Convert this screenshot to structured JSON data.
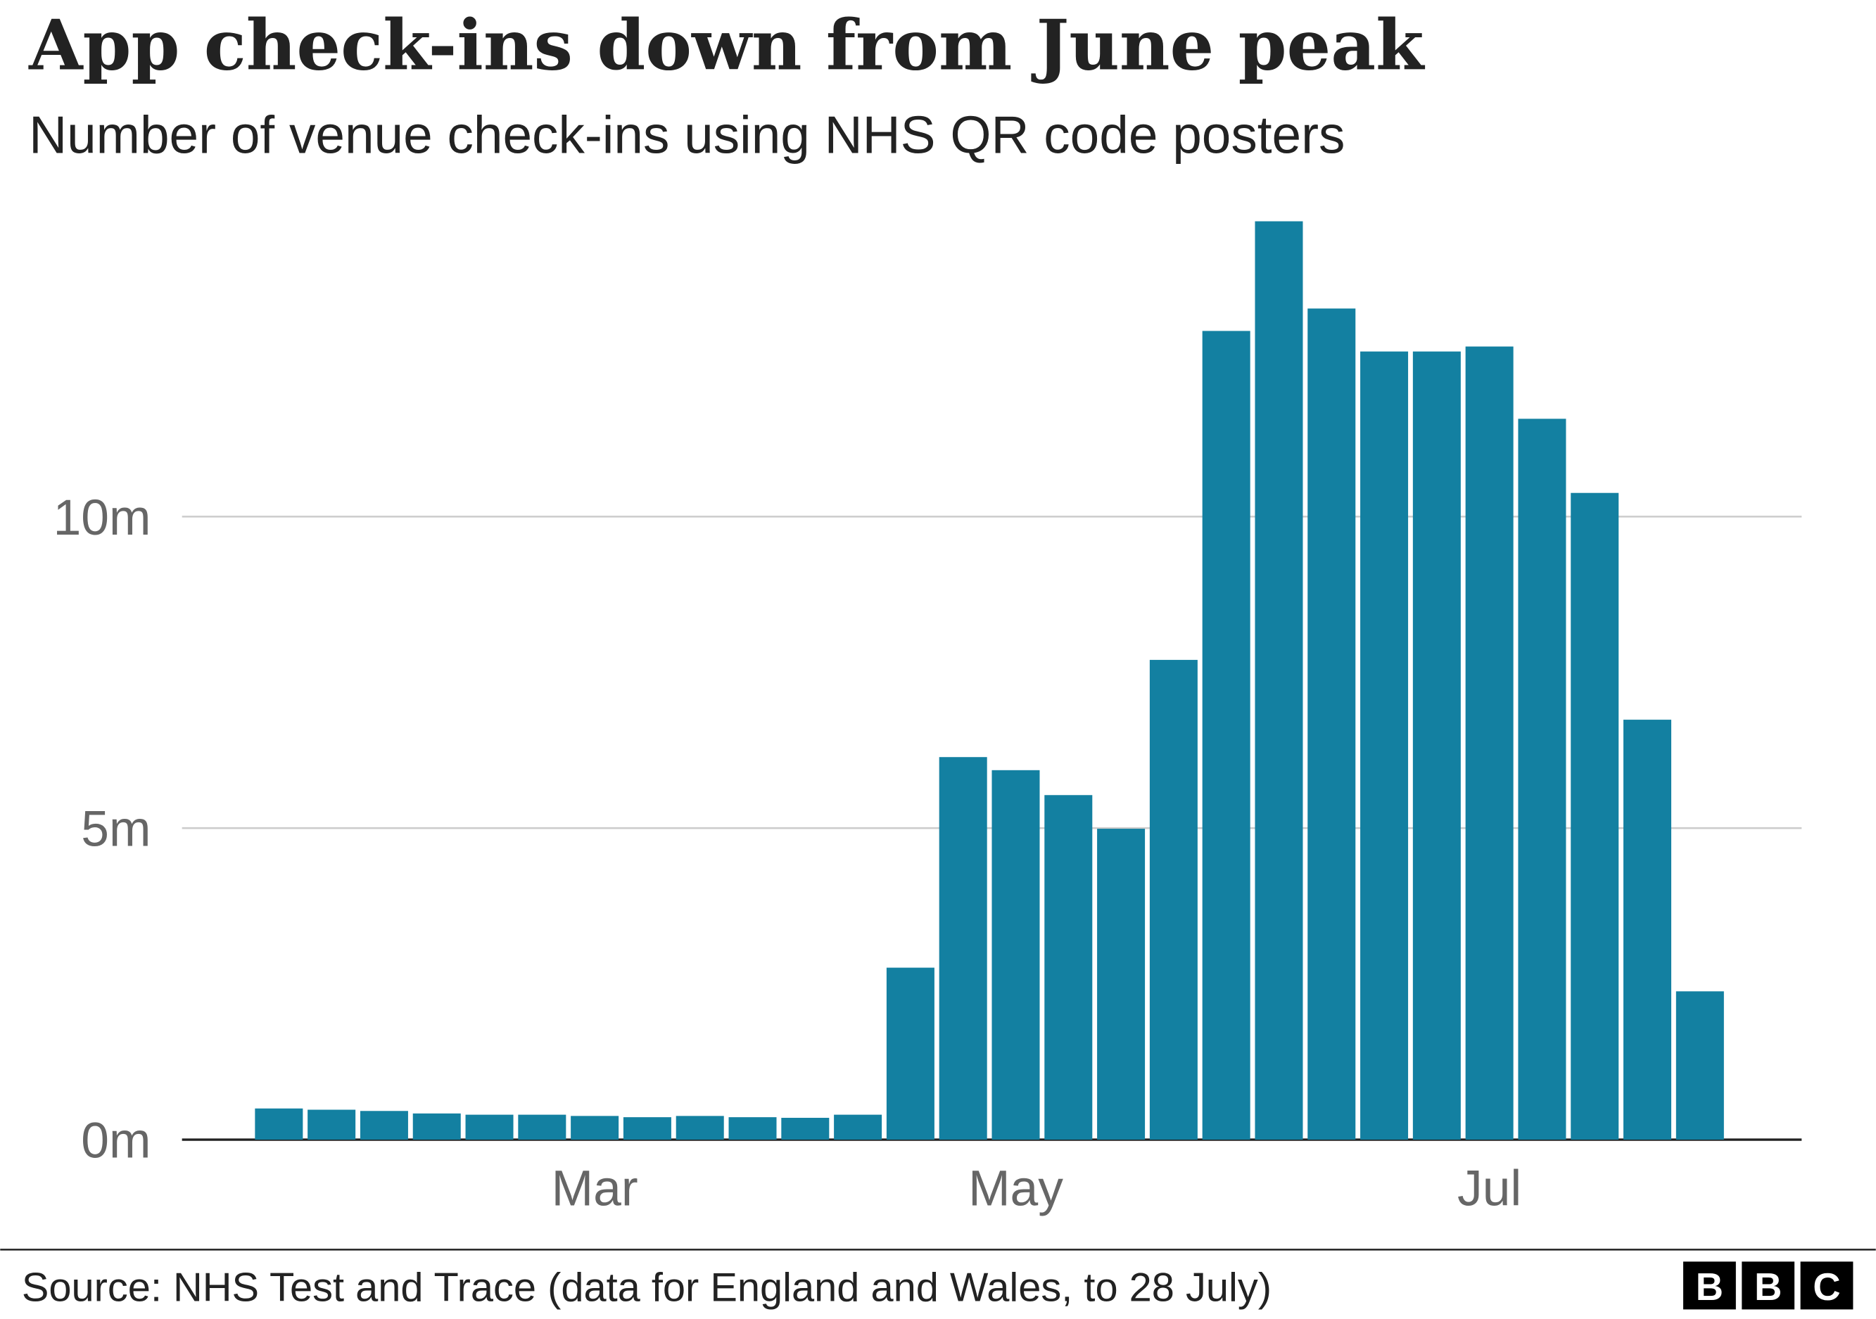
{
  "chart_data": {
    "type": "bar",
    "title": "App check-ins down from June peak",
    "subtitle": "Number of venue check-ins using NHS QR code posters",
    "categories": [
      null,
      null,
      null,
      null,
      null,
      null,
      "Mar",
      null,
      null,
      null,
      null,
      null,
      null,
      null,
      "May",
      null,
      null,
      null,
      null,
      null,
      null,
      null,
      null,
      "Jul",
      null,
      null,
      null,
      null
    ],
    "values": [
      0.5,
      0.48,
      0.46,
      0.42,
      0.4,
      0.4,
      0.38,
      0.36,
      0.38,
      0.36,
      0.35,
      0.4,
      2.76,
      6.14,
      5.93,
      5.53,
      4.99,
      7.7,
      12.98,
      14.74,
      13.34,
      12.65,
      12.65,
      12.73,
      11.57,
      10.38,
      6.74,
      2.38
    ],
    "color": "#1380a1",
    "ylim": [
      0,
      15
    ],
    "yticks": [
      {
        "value": 0,
        "label": "0m"
      },
      {
        "value": 5,
        "label": "5m"
      },
      {
        "value": 10,
        "label": "10m"
      }
    ],
    "grid": true,
    "source": "Source: NHS Test and Trace (data for England and Wales, to 28 July)",
    "logo": [
      "B",
      "B",
      "C"
    ]
  }
}
